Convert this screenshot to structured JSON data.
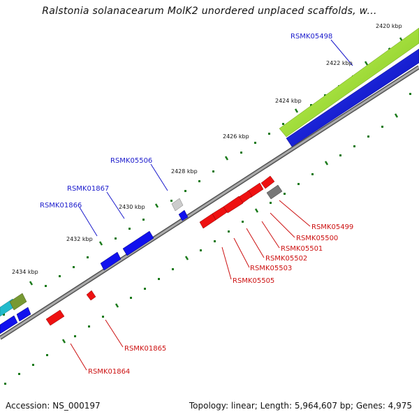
{
  "title": "Ralstonia solanacearum MolK2 unordered unplaced scaffolds, w...",
  "footer": {
    "accession": "Accession: NS_000197",
    "summary": "Topology: linear; Length: 5,964,607 bp; Genes: 4,975"
  },
  "ticks": [
    {
      "label": "2420 kbp"
    },
    {
      "label": "2422 kbp"
    },
    {
      "label": "2424 kbp"
    },
    {
      "label": "2426 kbp"
    },
    {
      "label": "2428 kbp"
    },
    {
      "label": "2430 kbp"
    },
    {
      "label": "2432 kbp"
    },
    {
      "label": "2434 kbp"
    }
  ],
  "genes_forward": [
    {
      "label": "RSMK05498"
    },
    {
      "label": "RSMK05506"
    },
    {
      "label": "RSMK01867"
    },
    {
      "label": "RSMK01866"
    }
  ],
  "genes_reverse": [
    {
      "label": "RSMK05499"
    },
    {
      "label": "RSMK05500"
    },
    {
      "label": "RSMK05501"
    },
    {
      "label": "RSMK05502"
    },
    {
      "label": "RSMK05503"
    },
    {
      "label": "RSMK05505"
    },
    {
      "label": "RSMK01865"
    },
    {
      "label": "RSMK01864"
    }
  ],
  "colors": {
    "forward_gene": "#1111ee",
    "reverse_gene": "#ee1111",
    "green_feature": "#99dd22",
    "backbone": "#888888",
    "tick": "#1a7a1a",
    "cyan_feature": "#22bbcc",
    "olive_feature": "#779933",
    "pseudo_gene": "#bbbbbb",
    "dark_gene": "#777777"
  }
}
